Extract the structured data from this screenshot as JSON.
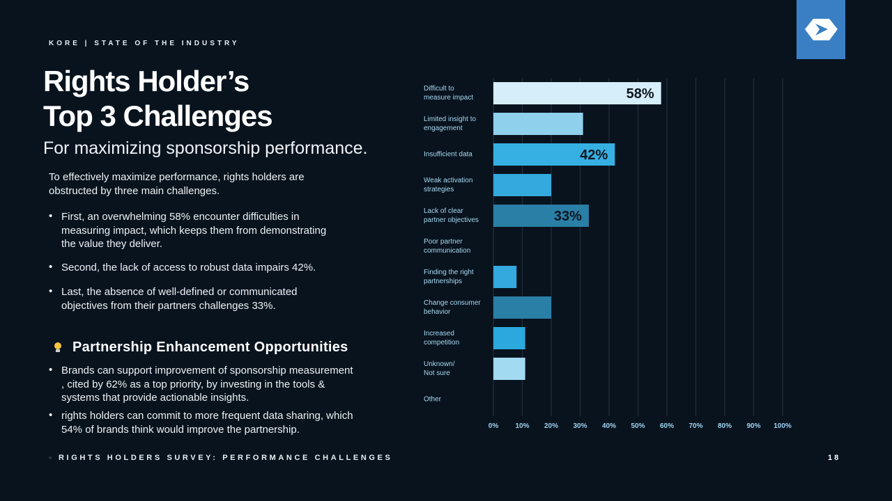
{
  "header": {
    "kicker": "KORE | STATE OF THE INDUSTRY"
  },
  "title": "Rights Holder’s\nTop 3 Challenges",
  "subtitle": "For maximizing sponsorship performance.",
  "intro": "To effectively maximize performance, rights holders are\nobstructed by three main challenges.",
  "bullets": [
    "First, an overwhelming 58% encounter difficulties in\nmeasuring impact, which keeps them from demonstrating\nthe value they deliver.",
    "Second, the lack of access to robust data impairs 42%.",
    "Last, the absence of well-defined or communicated\nobjectives from their partners challenges 33%."
  ],
  "section_heading": "Partnership Enhancement Opportunities",
  "opportunities": [
    "Brands can support improvement of sponsorship measurement\n, cited by 62% as a top priority, by investing in the tools &\nsystems that provide actionable insights.",
    "rights holders can commit to more frequent data sharing, which\n54% of brands think would improve the partnership."
  ],
  "footer": {
    "label": "RIGHTS HOLDERS SURVEY:  PERFORMANCE CHALLENGES",
    "page": "18"
  },
  "chart_data": {
    "type": "bar",
    "orientation": "horizontal",
    "categories": [
      "Difficult to\nmeasure impact",
      "Limited insight to\nengagement",
      "Insufficient data",
      "Weak activation\nstrategies",
      "Lack of clear\npartner objectives",
      "Poor partner\ncommunication",
      "Finding the right\npartnerships",
      "Change consumer\nbehavior",
      "Increased\ncompetition",
      "Unknown/\nNot sure",
      "Other"
    ],
    "values": [
      58,
      31,
      42,
      20,
      33,
      0,
      8,
      20,
      11,
      11,
      0
    ],
    "value_labels": [
      "58%",
      null,
      "42%",
      null,
      "33%",
      null,
      null,
      null,
      null,
      null,
      null
    ],
    "colors": [
      "#d6eef9",
      "#8fd0ec",
      "#36b0e2",
      "#33a9dd",
      "#2a7fa6",
      "#36b0e2",
      "#33a9dd",
      "#2a7fa6",
      "#2ba8dd",
      "#a2daf1",
      "#a2daf1"
    ],
    "xlim": [
      0,
      100
    ],
    "xticks": [
      {
        "value": 0,
        "label": "0%"
      },
      {
        "value": 10,
        "label": "10%"
      },
      {
        "value": 20,
        "label": "20%"
      },
      {
        "value": 30,
        "label": "30%"
      },
      {
        "value": 40,
        "label": "40%"
      },
      {
        "value": 50,
        "label": "50%"
      },
      {
        "value": 60,
        "label": "60%"
      },
      {
        "value": 70,
        "label": "70%"
      },
      {
        "value": 80,
        "label": "80%"
      },
      {
        "value": 90,
        "label": "90%"
      },
      {
        "value": 100,
        "label": "100%"
      }
    ],
    "grid": true
  }
}
